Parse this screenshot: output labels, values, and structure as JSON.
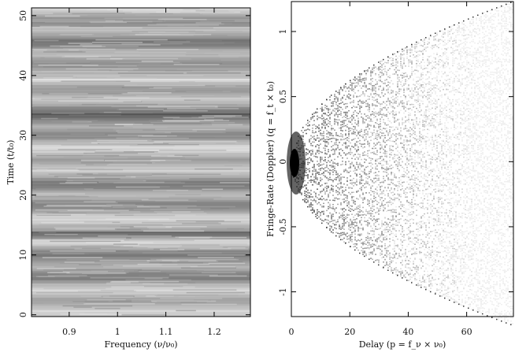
{
  "chart_data": [
    {
      "type": "heatmap",
      "x_label": "Frequency (ν/ν₀)",
      "y_label": "Time (t/t₀)",
      "xlim": [
        0.822,
        1.275
      ],
      "ylim": [
        -0.3,
        51.3
      ],
      "xticks": [
        0.9,
        1,
        1.1,
        1.2
      ],
      "yticks": [
        0,
        10,
        20,
        30,
        40,
        50
      ]
    },
    {
      "type": "heatmap",
      "x_label": "Delay  (p = f_ν × ν₀)",
      "y_label": "Fringe-Rate (Doppler)  (q = f_t × t₀)",
      "xlim": [
        0,
        76
      ],
      "ylim": [
        -1.19,
        1.23
      ],
      "xticks": [
        0,
        20,
        40,
        60
      ],
      "yticks": [
        -1,
        -0.5,
        0,
        0.5,
        1
      ]
    }
  ]
}
